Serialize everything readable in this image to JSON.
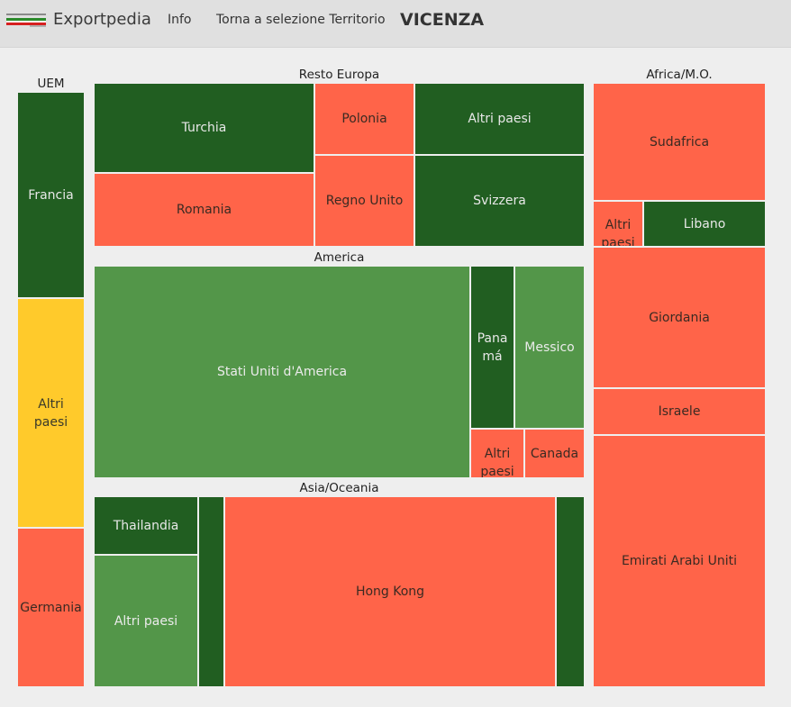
{
  "header": {
    "brand": "Exportpedia",
    "nav_info": "Info",
    "nav_back": "Torna a selezione Territorio",
    "page_title": "VICENZA",
    "logo_text": "EXPORTPEDIA"
  },
  "colors": {
    "dark_green": "#215e21",
    "green": "#539649",
    "red": "#ff6449",
    "yellow": "#ffca2b"
  },
  "groups": {
    "uem": {
      "label": "UEM",
      "tiles": {
        "francia": "Francia",
        "altri": "Altri paesi",
        "germania": "Germania"
      }
    },
    "resto_europa": {
      "label": "Resto Europa",
      "tiles": {
        "turchia": "Turchia",
        "polonia": "Polonia",
        "altri": "Altri paesi",
        "romania": "Romania",
        "regno_unito": "Regno Unito",
        "svizzera": "Svizzera"
      }
    },
    "america": {
      "label": "America",
      "tiles": {
        "usa": "Stati Uniti d'America",
        "panama": "Panamá",
        "messico": "Messico",
        "altri": "Altri paesi",
        "canada": "Canada"
      }
    },
    "asia": {
      "label": "Asia/Oceania",
      "tiles": {
        "thailandia": "Thailandia",
        "altri": "Altri paesi",
        "hong_kong": "Hong Kong"
      }
    },
    "africa": {
      "label": "Africa/M.O.",
      "tiles": {
        "sudafrica": "Sudafrica",
        "altri": "Altri paesi",
        "libano": "Libano",
        "giordania": "Giordania",
        "israele": "Israele",
        "emirati": "Emirati Arabi Uniti"
      }
    }
  }
}
